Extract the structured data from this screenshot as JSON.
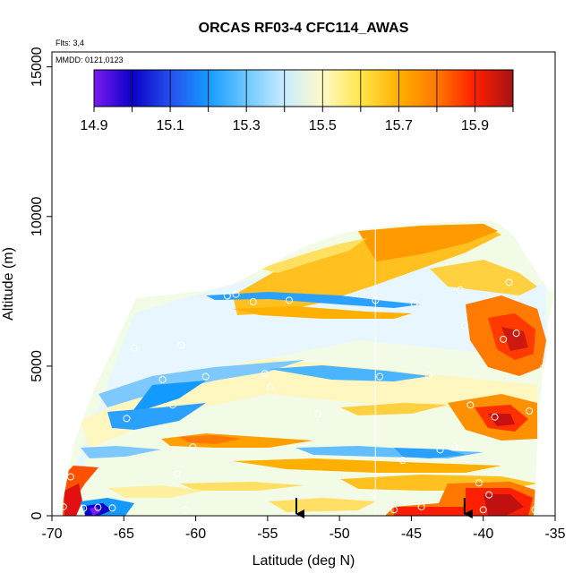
{
  "chart_data": {
    "type": "heatmap",
    "title": "ORCAS RF03-4 CFC114_AWAS",
    "annotations": {
      "flights": "Flts: 3,4",
      "dates": "MMDD: 0121,0123"
    },
    "xlabel": "Latitude (deg N)",
    "ylabel": "Altitude (m)",
    "xlim": [
      -70,
      -35
    ],
    "ylim": [
      0,
      15500
    ],
    "x_ticks": [
      -70,
      -65,
      -60,
      -55,
      -50,
      -45,
      -40,
      -35
    ],
    "x_tick_labels": [
      "-70",
      "-65",
      "-60",
      "-55",
      "-50",
      "-45",
      "-40",
      "-35"
    ],
    "y_ticks": [
      0,
      5000,
      10000,
      15000
    ],
    "y_tick_labels": [
      "0",
      "5000",
      "10000",
      "15000"
    ],
    "colorbar": {
      "range": [
        14.9,
        16.0
      ],
      "tick_values": [
        14.9,
        15.1,
        15.3,
        15.5,
        15.7,
        15.9
      ],
      "tick_labels": [
        "14.9",
        "15.1",
        "15.3",
        "15.5",
        "15.7",
        "15.9"
      ],
      "colors": [
        "#7a1cf0",
        "#0a00c8",
        "#2650ee",
        "#149aff",
        "#6ec8ff",
        "#c8ecff",
        "#fffac8",
        "#ffe64a",
        "#ffb000",
        "#ff7800",
        "#ff1e00",
        "#a51414"
      ]
    },
    "vertical_line_x": -47.5,
    "arrows_x": [
      -53.0,
      -41.3
    ],
    "sample_points": [
      {
        "x": -69.2,
        "y": 300
      },
      {
        "x": -68.7,
        "y": 1300
      },
      {
        "x": -67.8,
        "y": 250
      },
      {
        "x": -66.8,
        "y": 280
      },
      {
        "x": -65.8,
        "y": 260
      },
      {
        "x": -64.8,
        "y": 3250
      },
      {
        "x": -64.3,
        "y": 5600
      },
      {
        "x": -62.3,
        "y": 4550
      },
      {
        "x": -61.6,
        "y": 3700
      },
      {
        "x": -61.3,
        "y": 1400
      },
      {
        "x": -61.0,
        "y": 5700
      },
      {
        "x": -60.7,
        "y": 200
      },
      {
        "x": -60.2,
        "y": 2300
      },
      {
        "x": -59.3,
        "y": 4650
      },
      {
        "x": -57.8,
        "y": 7350
      },
      {
        "x": -57.2,
        "y": 7400
      },
      {
        "x": -56.0,
        "y": 7150
      },
      {
        "x": -55.2,
        "y": 4750
      },
      {
        "x": -54.8,
        "y": 4300
      },
      {
        "x": -53.5,
        "y": 7200
      },
      {
        "x": -51.5,
        "y": 3400
      },
      {
        "x": -48.8,
        "y": 9700
      },
      {
        "x": -47.5,
        "y": 7200
      },
      {
        "x": -47.2,
        "y": 4650
      },
      {
        "x": -46.2,
        "y": 200
      },
      {
        "x": -45.6,
        "y": 1850
      },
      {
        "x": -44.8,
        "y": 7100
      },
      {
        "x": -44.3,
        "y": 300
      },
      {
        "x": -43.8,
        "y": 4700
      },
      {
        "x": -43.0,
        "y": 2200
      },
      {
        "x": -42.0,
        "y": 2300
      },
      {
        "x": -41.6,
        "y": 7550
      },
      {
        "x": -41.3,
        "y": 6350
      },
      {
        "x": -40.9,
        "y": 3700
      },
      {
        "x": -40.3,
        "y": 1100
      },
      {
        "x": -40.0,
        "y": 200
      },
      {
        "x": -39.6,
        "y": 700
      },
      {
        "x": -39.2,
        "y": 3300
      },
      {
        "x": -38.6,
        "y": 5900
      },
      {
        "x": -38.2,
        "y": 7800
      },
      {
        "x": -37.7,
        "y": 6100
      },
      {
        "x": -36.8,
        "y": 3500
      },
      {
        "x": -36.4,
        "y": 200
      },
      {
        "x": -35.8,
        "y": 4950
      },
      {
        "x": -35.3,
        "y": 7600
      }
    ]
  }
}
